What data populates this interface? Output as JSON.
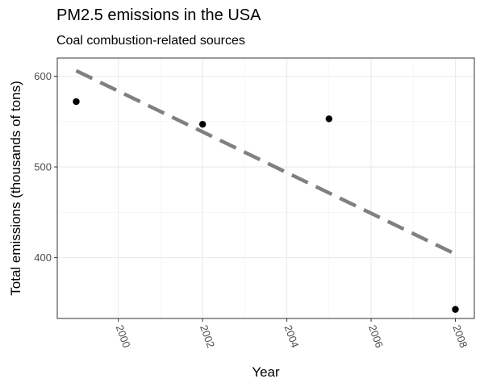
{
  "chart_data": {
    "type": "scatter",
    "title": "PM2.5 emissions in the USA",
    "subtitle": "Coal combustion-related sources",
    "xlabel": "Year",
    "ylabel": "Total emissions (thousands of tons)",
    "xlim": [
      1998.55,
      2008.45
    ],
    "ylim": [
      333,
      620
    ],
    "x_ticks": [
      2000,
      2002,
      2004,
      2006,
      2008
    ],
    "y_ticks": [
      400,
      500,
      600
    ],
    "points": [
      {
        "x": 1999,
        "y": 572
      },
      {
        "x": 2002,
        "y": 547
      },
      {
        "x": 2005,
        "y": 553
      },
      {
        "x": 2008,
        "y": 343
      }
    ],
    "trend_line": {
      "style": "dashed",
      "color": "#808080",
      "x": [
        1999,
        2008
      ],
      "y": [
        606,
        404
      ]
    },
    "grid": true,
    "legend": "none"
  }
}
